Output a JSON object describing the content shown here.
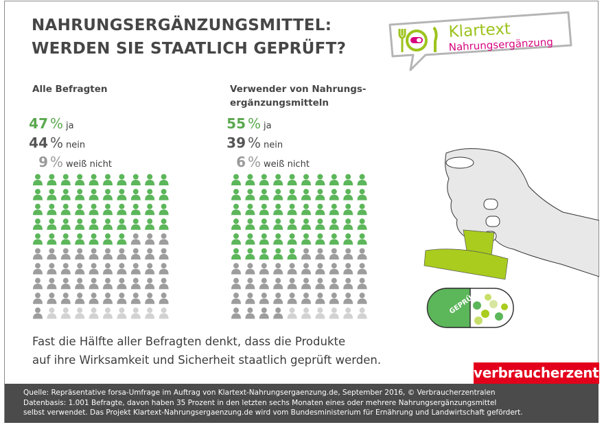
{
  "title": {
    "line1": "NAHRUNGSERGÄNZUNGSMITTEL:",
    "line2": "WERDEN SIE STAATLICH GEPRÜFT?"
  },
  "logo": {
    "name": "Klartext",
    "sub": "Nahrungsergänzung",
    "colors": {
      "green": "#9cc31c",
      "magenta": "#d6057f"
    }
  },
  "chart_data": {
    "type": "pictogram",
    "units_per_icon": 1,
    "total_icons": 100,
    "colors": {
      "ja": "#5cb65a",
      "nein": "#9d9d9d",
      "weiß nicht": "#d2d2d2"
    },
    "groups": [
      {
        "label": "Alle Befragten",
        "values": [
          {
            "value": "47",
            "unit": "%",
            "label": "ja",
            "count": 47
          },
          {
            "value": "44",
            "unit": "%",
            "label": "nein",
            "count": 44
          },
          {
            "value": "9",
            "unit": "%",
            "label": "weiß nicht",
            "count": 9
          }
        ]
      },
      {
        "label_line1": "Verwender von Nahrungs-",
        "label_line2": "ergänzungsmitteln",
        "values": [
          {
            "value": "55",
            "unit": "%",
            "label": "ja",
            "count": 55
          },
          {
            "value": "39",
            "unit": "%",
            "label": "nein",
            "count": 39
          },
          {
            "value": "6",
            "unit": "%",
            "label": "weiß nicht",
            "count": 6
          }
        ]
      }
    ]
  },
  "illustration": {
    "stamp_text": "GEPRÜFT"
  },
  "conclusion": {
    "line1": "Fast die Hälfte aller Befragten denkt, dass die Produkte",
    "line2": "auf  ihre  Wirksamkeit und Sicherheit staatlich geprüft werden."
  },
  "brand": "verbraucherzentrale",
  "footer": {
    "line1": "Quelle: Repräsentative forsa-Umfrage im Auftrag von Klartext-Nahrungsergaenzung.de, September 2016, © Verbraucherzentralen",
    "line2": "Datenbasis: 1.001 Befragte, davon haben 35 Prozent in den letzten sechs Monaten eines oder mehrere Nahrungsergänzungsmittel",
    "line3": "selbst verwendet. Das Projekt Klartext-Nahrungsergaenzung.de wird vom Bundesministerium für Ernährung und Landwirtschaft gefördert."
  }
}
